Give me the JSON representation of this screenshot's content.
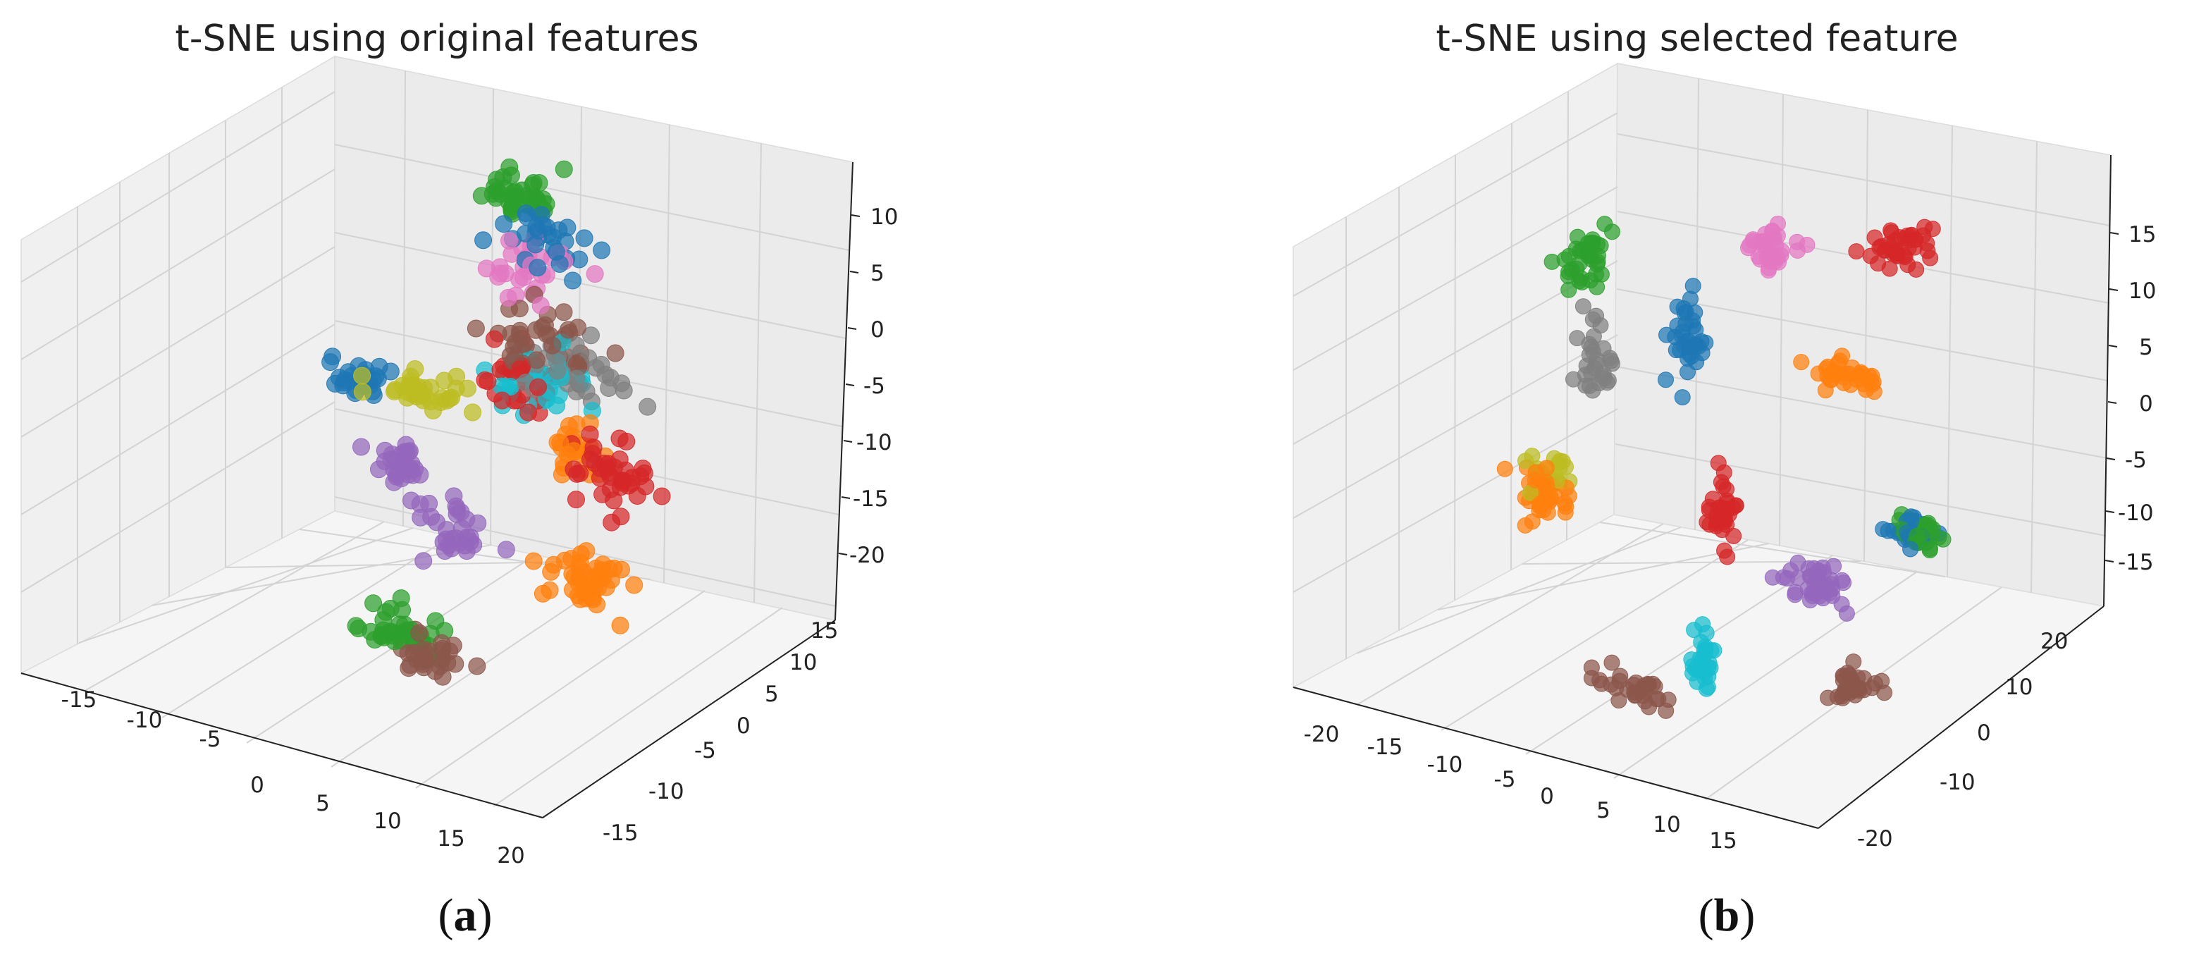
{
  "figure": {
    "panels": [
      {
        "id": "a",
        "label": "a"
      },
      {
        "id": "b",
        "label": "b"
      }
    ]
  },
  "colors": {
    "blue": "#1f77b4",
    "orange": "#ff7f0e",
    "green": "#2ca02c",
    "red": "#d62728",
    "purple": "#9467bd",
    "brown": "#8c564b",
    "pink": "#e377c2",
    "gray": "#7f7f7f",
    "olive": "#bcbd22",
    "cyan": "#17becf"
  },
  "chart_data": [
    {
      "type": "scatter",
      "title": "t-SNE using original features",
      "xlabel": "",
      "ylabel": "",
      "zlabel": "",
      "xlim": [
        -20,
        20
      ],
      "ylim": [
        -20,
        20
      ],
      "zlim": [
        -25,
        15
      ],
      "x_ticks": [
        -15,
        -10,
        -5,
        0,
        5,
        10,
        15,
        20
      ],
      "y_ticks": [
        -15,
        -10,
        -5,
        0,
        5,
        10,
        15
      ],
      "z_ticks": [
        -20,
        -15,
        -10,
        -5,
        0,
        5,
        10
      ],
      "grid": true,
      "clusters": [
        {
          "color": "green",
          "x": 0,
          "y": 10,
          "z": 10,
          "sx": 2.5,
          "sy": 1.5,
          "sz": 1.5,
          "n": 40
        },
        {
          "color": "blue",
          "x": 3,
          "y": 9,
          "z": 8,
          "sx": 3,
          "sy": 2,
          "sz": 2,
          "n": 30
        },
        {
          "color": "pink",
          "x": 2,
          "y": 8,
          "z": 5,
          "sx": 2.5,
          "sy": 2,
          "sz": 2,
          "n": 30
        },
        {
          "color": "brown",
          "x": 5,
          "y": 5,
          "z": 1,
          "sx": 3.5,
          "sy": 2.5,
          "sz": 2.5,
          "n": 45
        },
        {
          "color": "gray",
          "x": 8,
          "y": 4,
          "z": 0,
          "sx": 3,
          "sy": 2,
          "sz": 2,
          "n": 30
        },
        {
          "color": "cyan",
          "x": 5,
          "y": 4,
          "z": -2,
          "sx": 3,
          "sy": 2,
          "sz": 2.5,
          "n": 35
        },
        {
          "color": "red",
          "x": 4,
          "y": 4,
          "z": -3,
          "sx": 3,
          "sy": 2,
          "sz": 2.5,
          "n": 30
        },
        {
          "color": "orange",
          "x": 10,
          "y": 1,
          "z": -5,
          "sx": 1.5,
          "sy": 1.5,
          "sz": 2,
          "n": 25
        },
        {
          "color": "red",
          "x": 14,
          "y": -1,
          "z": -5,
          "sx": 2.5,
          "sy": 1.5,
          "sz": 2.5,
          "n": 40
        },
        {
          "color": "orange",
          "x": 13,
          "y": -2,
          "z": -14,
          "sx": 2.5,
          "sy": 1.5,
          "sz": 2,
          "n": 45
        },
        {
          "color": "blue",
          "x": -11,
          "y": 9,
          "z": -9,
          "sx": 2,
          "sy": 1.5,
          "sz": 1,
          "n": 30
        },
        {
          "color": "olive",
          "x": -5,
          "y": 8,
          "z": -8,
          "sx": 3,
          "sy": 1.5,
          "sz": 1,
          "n": 35
        },
        {
          "color": "purple",
          "x": -6,
          "y": 6,
          "z": -14,
          "sx": 2,
          "sy": 1.5,
          "sz": 1.5,
          "n": 30
        },
        {
          "color": "purple",
          "x": 2,
          "y": 0,
          "z": -14,
          "sx": 2,
          "sy": 1.5,
          "sz": 2,
          "n": 30
        },
        {
          "color": "green",
          "x": 1,
          "y": -6,
          "z": -21,
          "sx": 2.5,
          "sy": 1.5,
          "sz": 1.5,
          "n": 35
        },
        {
          "color": "brown",
          "x": 4,
          "y": -7,
          "z": -22,
          "sx": 2,
          "sy": 1.5,
          "sz": 1.5,
          "n": 30
        }
      ]
    },
    {
      "type": "scatter",
      "title": "t-SNE using selected feature",
      "xlabel": "",
      "ylabel": "",
      "zlabel": "",
      "xlim": [
        -22,
        20
      ],
      "ylim": [
        -25,
        25
      ],
      "zlim": [
        -18,
        20
      ],
      "x_ticks": [
        -20,
        -15,
        -10,
        -5,
        0,
        5,
        10,
        15
      ],
      "y_ticks": [
        -20,
        -10,
        0,
        10,
        20
      ],
      "z_ticks": [
        -15,
        -10,
        -5,
        0,
        5,
        10,
        15
      ],
      "grid": true,
      "clusters": [
        {
          "color": "red",
          "x": 10,
          "y": 10,
          "z": 15,
          "sx": 2,
          "sy": 1.5,
          "sz": 1.5,
          "n": 40
        },
        {
          "color": "pink",
          "x": -2,
          "y": 14,
          "z": 10,
          "sx": 1.5,
          "sy": 1.5,
          "sz": 2,
          "n": 35
        },
        {
          "color": "orange",
          "x": 8,
          "y": 6,
          "z": 5,
          "sx": 2.5,
          "sy": 1.5,
          "sz": 1,
          "n": 35
        },
        {
          "color": "green",
          "x": -16,
          "y": 12,
          "z": 6,
          "sx": 1.5,
          "sy": 1.5,
          "sz": 2,
          "n": 35
        },
        {
          "color": "gray",
          "x": -15,
          "y": 12,
          "z": -2,
          "sx": 1.2,
          "sy": 1.2,
          "sz": 3,
          "n": 30
        },
        {
          "color": "blue",
          "x": -6,
          "y": 8,
          "z": 4,
          "sx": 1.2,
          "sy": 1.2,
          "sz": 3,
          "n": 35
        },
        {
          "color": "blue",
          "x": 17,
          "y": -3,
          "z": -2,
          "sx": 1.5,
          "sy": 1.2,
          "sz": 1,
          "n": 25
        },
        {
          "color": "green",
          "x": 18,
          "y": -3,
          "z": -2,
          "sx": 1.5,
          "sy": 1.2,
          "sz": 1,
          "n": 30
        },
        {
          "color": "red",
          "x": 0,
          "y": 2,
          "z": -7,
          "sx": 1.2,
          "sy": 1.2,
          "sz": 3,
          "n": 35
        },
        {
          "color": "purple",
          "x": 9,
          "y": -2,
          "z": -9,
          "sx": 2,
          "sy": 1.5,
          "sz": 1.5,
          "n": 40
        },
        {
          "color": "olive",
          "x": -15,
          "y": 4,
          "z": -9,
          "sx": 1.5,
          "sy": 1.5,
          "sz": 1.5,
          "n": 20
        },
        {
          "color": "orange",
          "x": -15,
          "y": 3,
          "z": -10,
          "sx": 1.5,
          "sy": 1.5,
          "sz": 2,
          "n": 35
        },
        {
          "color": "brown",
          "x": 16,
          "y": -10,
          "z": -13,
          "sx": 1.5,
          "sy": 1.5,
          "sz": 1,
          "n": 30
        },
        {
          "color": "cyan",
          "x": 3,
          "y": -8,
          "z": -15,
          "sx": 1,
          "sy": 1,
          "sz": 2.5,
          "n": 30
        },
        {
          "color": "brown",
          "x": -1,
          "y": -12,
          "z": -17,
          "sx": 3,
          "sy": 1.5,
          "sz": 0.8,
          "n": 30
        }
      ]
    }
  ]
}
